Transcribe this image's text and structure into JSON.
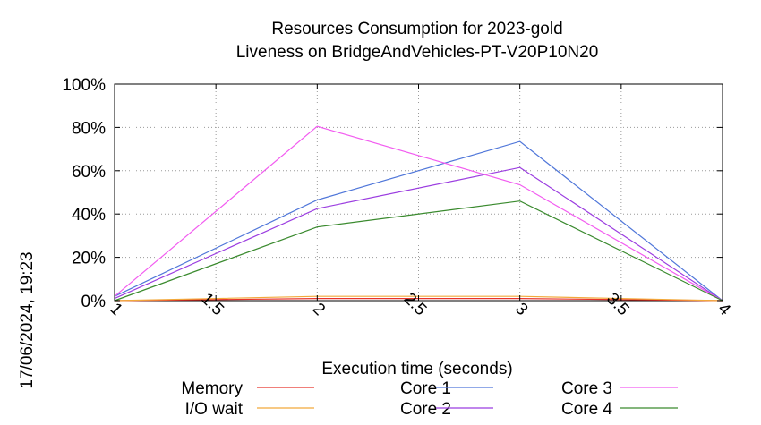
{
  "chart_data": {
    "type": "line",
    "title": "Resources Consumption for 2023-gold",
    "subtitle": "Liveness on BridgeAndVehicles-PT-V20P10N20",
    "xlabel": "Execution time (seconds)",
    "ylabel": "",
    "side_label": "17/06/2024, 19:23",
    "xlim": [
      1,
      4
    ],
    "ylim": [
      0,
      100
    ],
    "x_ticks": [
      "1",
      "1.5",
      "2",
      "2.5",
      "3",
      "3.5",
      "4"
    ],
    "y_ticks": [
      "0%",
      "20%",
      "40%",
      "60%",
      "80%",
      "100%"
    ],
    "grid": true,
    "legend_position": "bottom",
    "x": [
      1,
      2,
      3,
      4
    ],
    "series": [
      {
        "name": "Memory",
        "color": "#e8332a",
        "values": [
          0,
          1,
          1,
          0
        ]
      },
      {
        "name": "I/O wait",
        "color": "#f2a93b",
        "values": [
          0,
          2,
          2,
          0
        ]
      },
      {
        "name": "Core 1",
        "color": "#4f76d9",
        "values": [
          2,
          46.5,
          73.5,
          0
        ]
      },
      {
        "name": "Core 2",
        "color": "#9b3de0",
        "values": [
          1,
          42.5,
          61.5,
          0
        ]
      },
      {
        "name": "Core 3",
        "color": "#f25cf0",
        "values": [
          2,
          80.5,
          53.5,
          0
        ]
      },
      {
        "name": "Core 4",
        "color": "#3a8a2e",
        "values": [
          0,
          34,
          46,
          0
        ]
      }
    ]
  }
}
